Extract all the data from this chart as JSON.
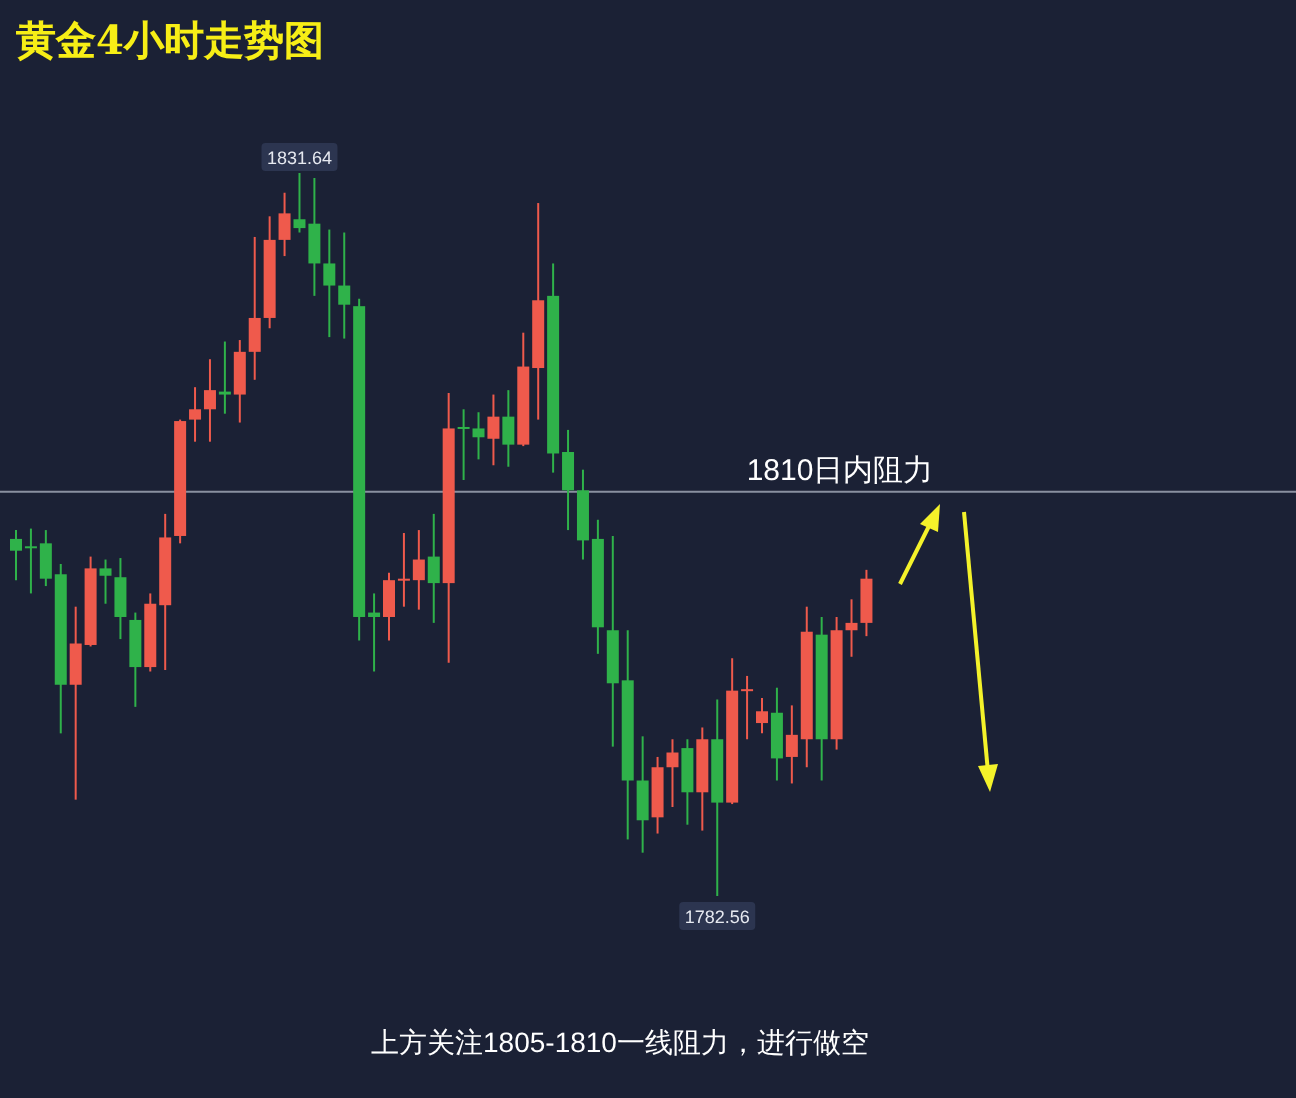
{
  "chart_data": {
    "type": "candlestick",
    "title": "黄金4小时走势图",
    "categories": [
      null,
      null,
      null,
      null,
      null,
      null,
      null,
      null,
      null,
      null,
      null,
      null,
      null,
      null,
      null,
      null,
      null,
      null,
      null,
      null,
      null,
      null,
      null,
      null,
      null,
      null,
      null,
      null,
      null,
      null,
      null,
      null,
      null,
      null,
      null,
      null,
      null,
      null,
      null,
      null,
      null,
      null,
      null,
      null,
      null,
      null,
      null,
      null,
      null,
      null,
      null,
      null,
      null,
      null,
      null,
      null,
      null,
      null
    ],
    "ohlc": [
      [
        1806.8,
        1807.4,
        1804.0,
        1806.0
      ],
      [
        1806.3,
        1807.5,
        1803.1,
        1806.2
      ],
      [
        1806.5,
        1807.4,
        1803.6,
        1804.1
      ],
      [
        1804.4,
        1805.1,
        1793.6,
        1796.9
      ],
      [
        1796.9,
        1802.2,
        1789.1,
        1799.7
      ],
      [
        1799.6,
        1805.6,
        1799.5,
        1804.8
      ],
      [
        1804.8,
        1805.4,
        1802.4,
        1804.3
      ],
      [
        1804.2,
        1805.5,
        1800.0,
        1801.5
      ],
      [
        1801.3,
        1801.8,
        1795.4,
        1798.1
      ],
      [
        1798.1,
        1803.1,
        1797.8,
        1802.4
      ],
      [
        1802.3,
        1808.5,
        1797.9,
        1806.9
      ],
      [
        1807.0,
        1814.9,
        1806.5,
        1814.8
      ],
      [
        1814.9,
        1817.1,
        1813.4,
        1815.6
      ],
      [
        1815.6,
        1819.0,
        1813.4,
        1816.9
      ],
      [
        1816.8,
        1820.2,
        1815.3,
        1816.6
      ],
      [
        1816.6,
        1820.3,
        1814.7,
        1819.5
      ],
      [
        1819.5,
        1827.3,
        1817.6,
        1821.8
      ],
      [
        1821.8,
        1828.7,
        1821.1,
        1827.1
      ],
      [
        1827.1,
        1830.3,
        1826.0,
        1828.9
      ],
      [
        1828.5,
        1831.64,
        1827.6,
        1827.9
      ],
      [
        1828.2,
        1831.3,
        1823.3,
        1825.5
      ],
      [
        1825.5,
        1827.8,
        1820.5,
        1824.0
      ],
      [
        1824.0,
        1827.6,
        1820.4,
        1822.7
      ],
      [
        1822.6,
        1823.1,
        1799.9,
        1801.5
      ],
      [
        1801.8,
        1803.1,
        1797.8,
        1801.5
      ],
      [
        1801.5,
        1804.5,
        1799.9,
        1804.0
      ],
      [
        1804.0,
        1807.2,
        1802.2,
        1804.1
      ],
      [
        1804.0,
        1807.4,
        1802.0,
        1805.4
      ],
      [
        1805.6,
        1808.5,
        1801.1,
        1803.8
      ],
      [
        1803.8,
        1816.7,
        1798.4,
        1814.3
      ],
      [
        1814.4,
        1815.6,
        1810.8,
        1814.3
      ],
      [
        1814.3,
        1815.4,
        1812.2,
        1813.7
      ],
      [
        1813.6,
        1816.6,
        1811.8,
        1815.1
      ],
      [
        1815.1,
        1816.9,
        1811.7,
        1813.2
      ],
      [
        1813.2,
        1820.8,
        1813.1,
        1818.5
      ],
      [
        1818.4,
        1829.6,
        1814.9,
        1823.0
      ],
      [
        1823.3,
        1825.5,
        1811.3,
        1812.6
      ],
      [
        1812.7,
        1814.2,
        1807.4,
        1810.1
      ],
      [
        1810.1,
        1811.5,
        1805.4,
        1806.7
      ],
      [
        1806.8,
        1808.1,
        1799.0,
        1800.8
      ],
      [
        1800.6,
        1807.0,
        1792.7,
        1797.0
      ],
      [
        1797.2,
        1800.6,
        1786.4,
        1790.4
      ],
      [
        1790.4,
        1793.4,
        1785.5,
        1787.7
      ],
      [
        1787.9,
        1792.0,
        1786.8,
        1791.3
      ],
      [
        1791.3,
        1793.2,
        1788.6,
        1792.3
      ],
      [
        1792.6,
        1793.2,
        1787.4,
        1789.6
      ],
      [
        1789.6,
        1794.0,
        1787.0,
        1793.2
      ],
      [
        1793.2,
        1795.9,
        1782.56,
        1788.9
      ],
      [
        1788.9,
        1798.7,
        1788.8,
        1796.5
      ],
      [
        1796.5,
        1797.5,
        1793.2,
        1796.6
      ],
      [
        1794.3,
        1796.0,
        1793.6,
        1795.1
      ],
      [
        1795.0,
        1796.7,
        1790.4,
        1791.9
      ],
      [
        1792.0,
        1795.5,
        1790.2,
        1793.5
      ],
      [
        1793.2,
        1802.2,
        1791.3,
        1800.5
      ],
      [
        1800.3,
        1801.5,
        1790.4,
        1793.2
      ],
      [
        1793.2,
        1801.5,
        1792.5,
        1800.6
      ],
      [
        1800.6,
        1802.7,
        1798.8,
        1801.1
      ],
      [
        1801.1,
        1804.7,
        1800.2,
        1804.1
      ]
    ],
    "ref_lines": [
      {
        "axis": "y",
        "value": 1810,
        "label": "1810日内阻力",
        "color": "#8a90a0"
      }
    ],
    "annotations": [
      {
        "text": "1831.64",
        "y": 1831.64
      },
      {
        "text": "1782.56",
        "y": 1782.56
      },
      "上方关注1805-1810一线阻力，进行做空"
    ]
  }
}
